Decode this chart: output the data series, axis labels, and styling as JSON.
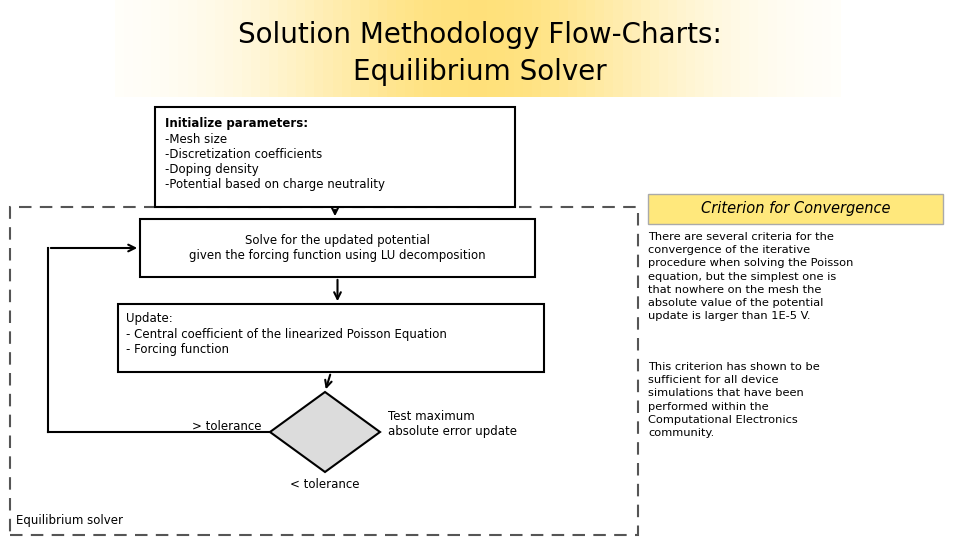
{
  "title_line1": "Solution Methodology Flow-Charts:",
  "title_line2": "Equilibrium Solver",
  "title_bg_left": "#FFFFFF",
  "title_bg_mid": "#FFE87C",
  "title_bg_color": "#FFE87C",
  "title_font_size": 20,
  "box1_title": "Initialize parameters:",
  "box1_items": "-Mesh size\n-Discretization coefficients\n-Doping density\n-Potential based on charge neutrality",
  "box2_text": "Solve for the updated potential\ngiven the forcing function using LU decomposition",
  "box3_title": "Update:",
  "box3_items": "- Central coefficient of the linearized Poisson Equation\n- Forcing function",
  "diamond_left_label": "> tolerance",
  "diamond_right_label": "Test maximum\nabsolute error update",
  "diamond_bottom_label": "< tolerance",
  "loop_label": "Equilibrium solver",
  "criterion_title": "Criterion for Convergence",
  "criterion_title_bg": "#FFE87C",
  "text1": "There are several criteria for the\nconvergence of the iterative\nprocedure when solving the Poisson\nequation, but the simplest one is\nthat nowhere on the mesh the\nabsolute value of the potential\nupdate is larger than 1E-5 V.",
  "text2": "This criterion has shown to be\nsufficient for all device\nsimulations that have been\nperformed within the\nComputational Electronics\ncommunity.",
  "bg_color": "#ffffff"
}
